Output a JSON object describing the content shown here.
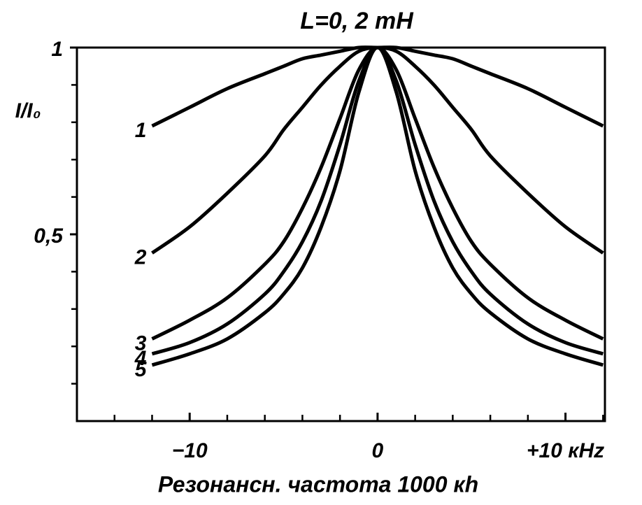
{
  "chart_data": {
    "type": "line",
    "title": "L=0, 2 mH",
    "ylabel": "I/I₀",
    "xlabel": "Резонансн. частота 1000 кh",
    "x": [
      -12,
      -10,
      -8,
      -6,
      -5,
      -4,
      -3,
      -2,
      -1,
      0,
      1,
      2,
      3,
      4,
      5,
      6,
      8,
      10,
      12
    ],
    "series": [
      {
        "name": "1",
        "color": "#000000",
        "values": [
          0.79,
          0.84,
          0.89,
          0.93,
          0.95,
          0.97,
          0.98,
          0.99,
          1.0,
          1.0,
          1.0,
          0.99,
          0.98,
          0.97,
          0.95,
          0.93,
          0.89,
          0.84,
          0.79
        ]
      },
      {
        "name": "2",
        "color": "#000000",
        "values": [
          0.45,
          0.52,
          0.61,
          0.71,
          0.78,
          0.84,
          0.9,
          0.95,
          0.99,
          1.0,
          0.99,
          0.95,
          0.9,
          0.84,
          0.78,
          0.71,
          0.61,
          0.52,
          0.45
        ]
      },
      {
        "name": "3",
        "color": "#000000",
        "values": [
          0.22,
          0.27,
          0.33,
          0.42,
          0.48,
          0.57,
          0.68,
          0.81,
          0.94,
          1.0,
          0.94,
          0.81,
          0.68,
          0.57,
          0.48,
          0.42,
          0.33,
          0.27,
          0.22
        ]
      },
      {
        "name": "4",
        "color": "#000000",
        "values": [
          0.18,
          0.21,
          0.26,
          0.34,
          0.4,
          0.48,
          0.59,
          0.74,
          0.91,
          1.0,
          0.91,
          0.74,
          0.59,
          0.48,
          0.4,
          0.34,
          0.26,
          0.21,
          0.18
        ]
      },
      {
        "name": "5",
        "color": "#000000",
        "values": [
          0.15,
          0.18,
          0.22,
          0.29,
          0.34,
          0.41,
          0.52,
          0.67,
          0.88,
          1.0,
          0.88,
          0.67,
          0.52,
          0.41,
          0.34,
          0.29,
          0.22,
          0.18,
          0.15
        ]
      }
    ],
    "xlim": [
      -16,
      12.1
    ],
    "ylim": [
      0,
      1
    ],
    "xticks": [
      {
        "value": -10,
        "label": "−10"
      },
      0,
      {
        "value": 10,
        "label": "+10 кHz"
      }
    ],
    "yticks": [
      {
        "value": 0.5,
        "label": "0,5"
      },
      1
    ],
    "xminorticks": [
      -14,
      -12,
      -8,
      -6,
      -4,
      -2,
      2,
      4,
      6,
      8,
      12
    ],
    "yminorticks": [
      0.1,
      0.2,
      0.3,
      0.4,
      0.6,
      0.7,
      0.8,
      0.9
    ]
  }
}
